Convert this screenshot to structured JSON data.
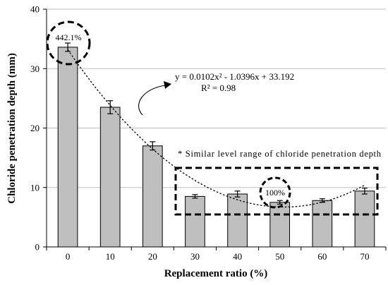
{
  "chart_data": {
    "type": "bar",
    "xlabel": "Replacement ratio (%)",
    "ylabel": "Chloride penetration depth (mm)",
    "ylim": [
      0,
      40
    ],
    "yticks": [
      "0",
      "10",
      "20",
      "30",
      "40"
    ],
    "categories": [
      "0",
      "10",
      "20",
      "30",
      "40",
      "50",
      "60",
      "70"
    ],
    "values": [
      33.6,
      23.5,
      17.0,
      8.5,
      8.9,
      7.5,
      7.8,
      9.4
    ],
    "errors": [
      0.7,
      1.1,
      0.7,
      0.3,
      0.5,
      0.3,
      0.3,
      0.5
    ],
    "grid": true,
    "trendline": {
      "equation": "y = 0.0102x² - 1.0396x + 33.192",
      "r2": "R² = 0.98",
      "a": 0.0102,
      "b": -1.0396,
      "c": 33.192
    },
    "annotations": {
      "max_label": "442.1%",
      "ref_label": "100%",
      "range_note": "* Similar level range of chloride penetration depth"
    },
    "colors": {
      "bar": "#bfbfbf",
      "bar_stroke": "#000000",
      "grid": "#bfbfbf"
    }
  }
}
